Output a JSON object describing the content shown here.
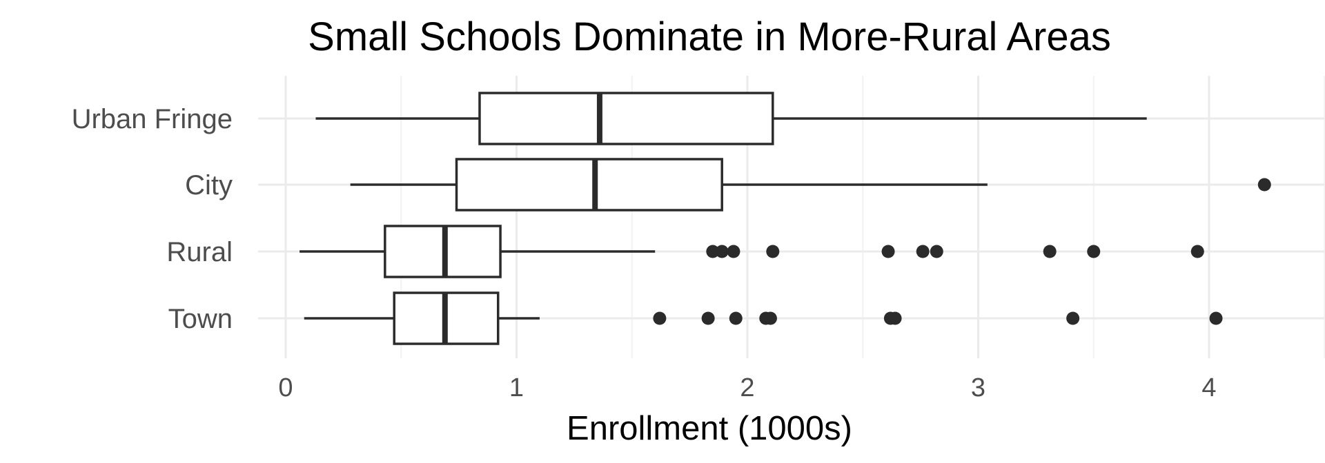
{
  "chart_data": {
    "type": "boxplot",
    "orientation": "horizontal",
    "title": "Small Schools Dominate in More-Rural Areas",
    "xlabel": "Enrollment (1000s)",
    "ylabel": "",
    "xlim": [
      -0.12,
      4.5
    ],
    "x_ticks": [
      0,
      1,
      2,
      3,
      4
    ],
    "x_tick_labels": [
      "0",
      "1",
      "2",
      "3",
      "4"
    ],
    "grid": true,
    "colors": {
      "box_stroke": "#2b2b2b",
      "box_fill": "#ffffff",
      "grid": "#ebebeb",
      "outlier": "#2b2b2b"
    },
    "categories": [
      "Urban Fringe",
      "City",
      "Rural",
      "Town"
    ],
    "boxes": [
      {
        "category": "Urban Fringe",
        "whisker_low": 0.13,
        "q1": 0.84,
        "median": 1.36,
        "q3": 2.11,
        "whisker_high": 3.73,
        "outliers": []
      },
      {
        "category": "City",
        "whisker_low": 0.28,
        "q1": 0.74,
        "median": 1.34,
        "q3": 1.89,
        "whisker_high": 3.04,
        "outliers": [
          4.24
        ]
      },
      {
        "category": "Rural",
        "whisker_low": 0.06,
        "q1": 0.43,
        "median": 0.69,
        "q3": 0.93,
        "whisker_high": 1.6,
        "outliers": [
          1.85,
          1.89,
          1.94,
          2.11,
          2.61,
          2.76,
          2.82,
          3.31,
          3.5,
          3.95
        ]
      },
      {
        "category": "Town",
        "whisker_low": 0.08,
        "q1": 0.47,
        "median": 0.69,
        "q3": 0.92,
        "whisker_high": 1.1,
        "outliers": [
          1.62,
          1.83,
          1.95,
          2.08,
          2.1,
          2.62,
          2.64,
          3.41,
          4.03
        ]
      }
    ]
  }
}
